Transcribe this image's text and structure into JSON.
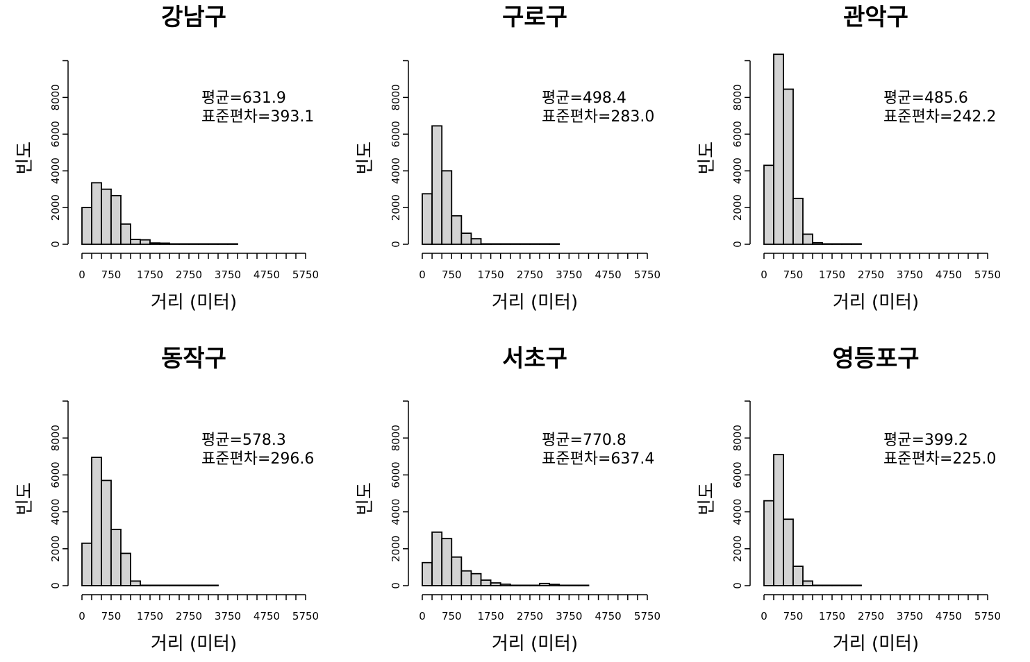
{
  "chart_data": [
    {
      "type": "bar",
      "title": "강남구",
      "xlabel": "거리 (미터)",
      "ylabel": "빈도",
      "mean_label": "평균=631.9",
      "sd_label": "표준편차=393.1",
      "bin_width": 250,
      "xlim": [
        0,
        5750
      ],
      "ylim": [
        0,
        10000
      ],
      "x_tick_labels": [
        "0",
        "750",
        "1750",
        "2750",
        "3750",
        "4750",
        "5750"
      ],
      "y_tick_labels": [
        "0",
        "2000",
        "4000",
        "6000",
        "8000"
      ],
      "values": [
        2000,
        3350,
        3000,
        2650,
        1100,
        260,
        240,
        70,
        60,
        15,
        10,
        5,
        5,
        5,
        5,
        5,
        0,
        0,
        0,
        0,
        0,
        0,
        0
      ]
    },
    {
      "type": "bar",
      "title": "구로구",
      "xlabel": "거리 (미터)",
      "ylabel": "빈도",
      "mean_label": "평균=498.4",
      "sd_label": "표준편차=283.0",
      "bin_width": 250,
      "xlim": [
        0,
        5750
      ],
      "ylim": [
        0,
        10000
      ],
      "x_tick_labels": [
        "0",
        "750",
        "1750",
        "2750",
        "3750",
        "4750",
        "5750"
      ],
      "y_tick_labels": [
        "0",
        "2000",
        "4000",
        "6000",
        "8000"
      ],
      "values": [
        2750,
        6450,
        4000,
        1550,
        600,
        300,
        5,
        5,
        5,
        5,
        5,
        5,
        5,
        5,
        0,
        0,
        0,
        0,
        0,
        0,
        0,
        0,
        0
      ]
    },
    {
      "type": "bar",
      "title": "관악구",
      "xlabel": "거리 (미터)",
      "ylabel": "빈도",
      "mean_label": "평균=485.6",
      "sd_label": "표준편차=242.2",
      "bin_width": 250,
      "xlim": [
        0,
        5750
      ],
      "ylim": [
        0,
        10000
      ],
      "x_tick_labels": [
        "0",
        "750",
        "1750",
        "2750",
        "3750",
        "4750",
        "5750"
      ],
      "y_tick_labels": [
        "0",
        "2000",
        "4000",
        "6000",
        "8000"
      ],
      "values": [
        4300,
        10350,
        8450,
        2500,
        550,
        80,
        10,
        5,
        5,
        5,
        0,
        0,
        0,
        0,
        0,
        0,
        0,
        0,
        0,
        0,
        0,
        0,
        0
      ]
    },
    {
      "type": "bar",
      "title": "동작구",
      "xlabel": "거리 (미터)",
      "ylabel": "빈도",
      "mean_label": "평균=578.3",
      "sd_label": "표준편차=296.6",
      "bin_width": 250,
      "xlim": [
        0,
        5750
      ],
      "ylim": [
        0,
        10000
      ],
      "x_tick_labels": [
        "0",
        "750",
        "1750",
        "2750",
        "3750",
        "4750",
        "5750"
      ],
      "y_tick_labels": [
        "0",
        "2000",
        "4000",
        "6000",
        "8000"
      ],
      "values": [
        2300,
        6950,
        5700,
        3050,
        1750,
        250,
        10,
        5,
        5,
        5,
        5,
        5,
        5,
        5,
        0,
        0,
        0,
        0,
        0,
        0,
        0,
        0,
        0
      ]
    },
    {
      "type": "bar",
      "title": "서초구",
      "xlabel": "거리 (미터)",
      "ylabel": "빈도",
      "mean_label": "평균=770.8",
      "sd_label": "표준편차=637.4",
      "bin_width": 250,
      "xlim": [
        0,
        5750
      ],
      "ylim": [
        0,
        10000
      ],
      "x_tick_labels": [
        "0",
        "750",
        "1750",
        "2750",
        "3750",
        "4750",
        "5750"
      ],
      "y_tick_labels": [
        "0",
        "2000",
        "4000",
        "6000",
        "8000"
      ],
      "values": [
        1250,
        2900,
        2550,
        1550,
        800,
        650,
        300,
        150,
        80,
        10,
        10,
        10,
        120,
        70,
        10,
        5,
        5,
        0,
        0,
        0,
        0,
        0,
        0
      ]
    },
    {
      "type": "bar",
      "title": "영등포구",
      "xlabel": "거리 (미터)",
      "ylabel": "빈도",
      "mean_label": "평균=399.2",
      "sd_label": "표준편차=225.0",
      "bin_width": 250,
      "xlim": [
        0,
        5750
      ],
      "ylim": [
        0,
        10000
      ],
      "x_tick_labels": [
        "0",
        "750",
        "1750",
        "2750",
        "3750",
        "4750",
        "5750"
      ],
      "y_tick_labels": [
        "0",
        "2000",
        "4000",
        "6000",
        "8000"
      ],
      "values": [
        4600,
        7100,
        3600,
        1050,
        250,
        10,
        5,
        5,
        5,
        5,
        0,
        0,
        0,
        0,
        0,
        0,
        0,
        0,
        0,
        0,
        0,
        0,
        0
      ]
    }
  ]
}
